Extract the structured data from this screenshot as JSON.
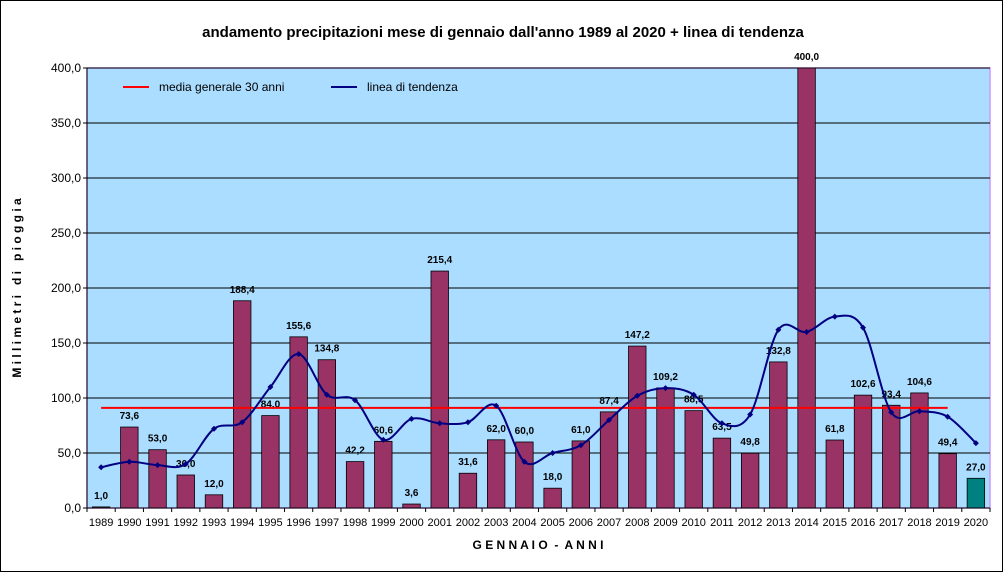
{
  "chart_data": {
    "type": "bar",
    "title": "andamento precipitazioni mese di gennaio dall'anno 1989 al 2020 + linea di tendenza",
    "xlabel": "G E N N A I O  -  A N N I",
    "ylabel": "M i l l i m e t r i   d i   p i o g g i a",
    "ylim": [
      0,
      400
    ],
    "yticks": [
      "0,0",
      "50,0",
      "100,0",
      "150,0",
      "200,0",
      "250,0",
      "300,0",
      "350,0",
      "400,0"
    ],
    "categories": [
      "1989",
      "1990",
      "1991",
      "1992",
      "1993",
      "1994",
      "1995",
      "1996",
      "1997",
      "1998",
      "1999",
      "2000",
      "2001",
      "2002",
      "2003",
      "2004",
      "2005",
      "2006",
      "2007",
      "2008",
      "2009",
      "2010",
      "2011",
      "2012",
      "2013",
      "2014",
      "2015",
      "2016",
      "2017",
      "2018",
      "2019",
      "2020"
    ],
    "series": [
      {
        "values": [
          1.0,
          73.6,
          53.0,
          30.0,
          12.0,
          188.4,
          84.0,
          155.6,
          134.8,
          42.2,
          60.6,
          3.6,
          215.4,
          31.6,
          62.0,
          60.0,
          18.0,
          61.0,
          87.4,
          147.2,
          109.2,
          88.5,
          63.5,
          49.8,
          132.8,
          400.0,
          61.8,
          102.6,
          93.4,
          104.6,
          49.4,
          27.0
        ],
        "labels": [
          "1,0",
          "73,6",
          "53,0",
          "30,0",
          "12,0",
          "188,4",
          "84,0",
          "155,6",
          "134,8",
          "42,2",
          "60,6",
          "3,6",
          "215,4",
          "31,6",
          "62,0",
          "60,0",
          "18,0",
          "61,0",
          "87,4",
          "147,2",
          "109,2",
          "88,5",
          "63,5",
          "49,8",
          "132,8",
          "400,0",
          "61,8",
          "102,6",
          "93,4",
          "104,6",
          "49,4",
          "27,0"
        ],
        "color": "#993366",
        "last_bar_color": "#008080"
      },
      {
        "name": "media generale 30 anni",
        "type": "line",
        "value": 91,
        "color": "#ff0000"
      },
      {
        "name": "linea di tendenza",
        "type": "line",
        "color": "#000080",
        "values": [
          37,
          42,
          39,
          40,
          72,
          78,
          110,
          140,
          103,
          98,
          62,
          81,
          77,
          78,
          93,
          42,
          50,
          57,
          80,
          102,
          109,
          103,
          77,
          85,
          162,
          160,
          174,
          164,
          87,
          88,
          83,
          59
        ]
      }
    ],
    "grid": true,
    "legend_position": "top-left",
    "colors": {
      "plot_background": "#aaddff",
      "plot_border": "#cc99ff",
      "gridline": "#000000"
    }
  }
}
